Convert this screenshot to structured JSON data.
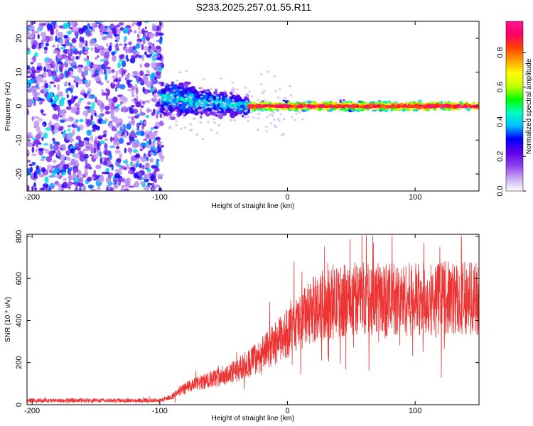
{
  "chart_data": [
    {
      "type": "heatmap",
      "title": "S233.2025.257.01.55.R11",
      "xlabel": "Height of straight line (km)",
      "ylabel": "Frequency (Hz)",
      "xlim": [
        -204,
        150
      ],
      "ylim": [
        -25,
        25
      ],
      "x_ticks": [
        -200,
        -100,
        0,
        100
      ],
      "y_ticks": [
        -20,
        -10,
        0,
        10,
        20
      ],
      "colorbar": {
        "label": "Normalized spectral amplitude",
        "range": [
          0.0,
          0.98
        ],
        "ticks": [
          0.0,
          0.2,
          0.4,
          0.6,
          0.8
        ],
        "colors": [
          "#ffffff",
          "#c8a6f0",
          "#8c3cf0",
          "#5a00e6",
          "#0000ff",
          "#00bfff",
          "#00ffc0",
          "#00ff00",
          "#c0ff00",
          "#ffff00",
          "#ffa000",
          "#ff4000",
          "#ff0066",
          "#ff1493"
        ]
      },
      "regions": [
        {
          "name": "noise",
          "x": [
            -204,
            -98
          ],
          "freq_spread": 25,
          "amplitude": 0.12
        },
        {
          "name": "onset",
          "x": [
            -98,
            -30
          ],
          "freq_spread": 7,
          "amplitude": 0.3
        },
        {
          "name": "carrier",
          "x": [
            -30,
            150
          ],
          "freq_center": 0,
          "freq_spread": 2,
          "amplitude": 0.75
        }
      ]
    },
    {
      "type": "line",
      "xlabel": "Height of straight line (km)",
      "ylabel": "SNR (10 * v/v)",
      "xlim": [
        -204,
        150
      ],
      "ylim": [
        0,
        810
      ],
      "x_ticks": [
        -200,
        -100,
        0,
        100
      ],
      "y_ticks": [
        0,
        200,
        400,
        600,
        800
      ],
      "color": "#ee3333",
      "envelope": {
        "x": [
          -204,
          -100,
          -90,
          -80,
          -60,
          -40,
          -20,
          0,
          20,
          40,
          60,
          80,
          100,
          120,
          150
        ],
        "y": [
          20,
          20,
          40,
          80,
          120,
          160,
          240,
          340,
          450,
          490,
          510,
          500,
          500,
          505,
          510
        ]
      }
    }
  ]
}
